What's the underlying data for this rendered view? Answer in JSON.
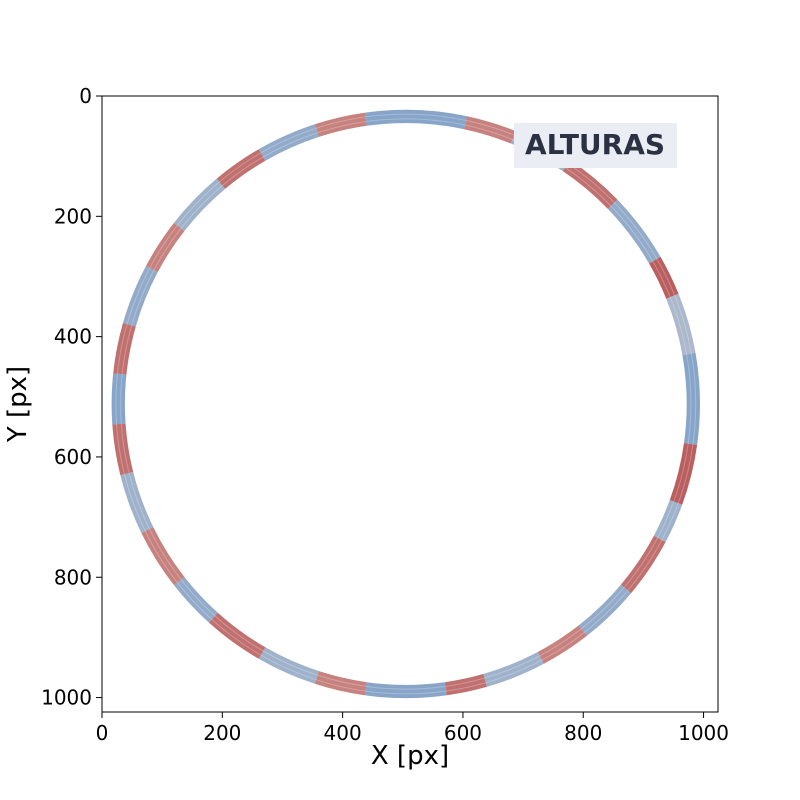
{
  "chart_data": {
    "type": "heatmap",
    "title": "",
    "xlabel": "X [px]",
    "ylabel": "Y [px]",
    "xlim": [
      0,
      1024
    ],
    "ylim": [
      1024,
      0
    ],
    "x_ticks": [
      0,
      200,
      400,
      600,
      800,
      1000
    ],
    "y_ticks": [
      0,
      200,
      400,
      600,
      800,
      1000
    ],
    "x_tick_labels": [
      "0",
      "200",
      "400",
      "600",
      "800",
      "1000"
    ],
    "y_tick_labels": [
      "0",
      "200",
      "400",
      "600",
      "800",
      "1000"
    ],
    "grid": false,
    "annotation": {
      "text": "ALTURAS",
      "position": "top-right",
      "text_color": "#2b3142",
      "background": "#eaeef4"
    },
    "ring": {
      "center": [
        505,
        512
      ],
      "radius": 478,
      "thickness": 22,
      "colormap": {
        "low": "#6f98c8",
        "mid": "#e8d8cf",
        "high": "#a62b2f"
      },
      "segments": [
        {
          "start_deg": -10,
          "end_deg": 8,
          "value": 0.1
        },
        {
          "start_deg": 8,
          "end_deg": 20,
          "value": 0.85
        },
        {
          "start_deg": 20,
          "end_deg": 28,
          "value": 0.2
        },
        {
          "start_deg": 28,
          "end_deg": 40,
          "value": 0.8
        },
        {
          "start_deg": 40,
          "end_deg": 52,
          "value": 0.15
        },
        {
          "start_deg": 52,
          "end_deg": 62,
          "value": 0.75
        },
        {
          "start_deg": 62,
          "end_deg": 74,
          "value": 0.2
        },
        {
          "start_deg": 74,
          "end_deg": 82,
          "value": 0.8
        },
        {
          "start_deg": 82,
          "end_deg": 98,
          "value": 0.1
        },
        {
          "start_deg": 98,
          "end_deg": 108,
          "value": 0.75
        },
        {
          "start_deg": 108,
          "end_deg": 120,
          "value": 0.2
        },
        {
          "start_deg": 120,
          "end_deg": 132,
          "value": 0.8
        },
        {
          "start_deg": 132,
          "end_deg": 142,
          "value": 0.15
        },
        {
          "start_deg": 142,
          "end_deg": 154,
          "value": 0.75
        },
        {
          "start_deg": 154,
          "end_deg": 166,
          "value": 0.2
        },
        {
          "start_deg": 166,
          "end_deg": 176,
          "value": 0.8
        },
        {
          "start_deg": 176,
          "end_deg": 186,
          "value": 0.1
        },
        {
          "start_deg": 186,
          "end_deg": 196,
          "value": 0.8
        },
        {
          "start_deg": 196,
          "end_deg": 208,
          "value": 0.15
        },
        {
          "start_deg": 208,
          "end_deg": 218,
          "value": 0.75
        },
        {
          "start_deg": 218,
          "end_deg": 230,
          "value": 0.2
        },
        {
          "start_deg": 230,
          "end_deg": 240,
          "value": 0.8
        },
        {
          "start_deg": 240,
          "end_deg": 252,
          "value": 0.15
        },
        {
          "start_deg": 252,
          "end_deg": 262,
          "value": 0.75
        },
        {
          "start_deg": 262,
          "end_deg": 282,
          "value": 0.1
        },
        {
          "start_deg": 282,
          "end_deg": 292,
          "value": 0.75
        },
        {
          "start_deg": 292,
          "end_deg": 304,
          "value": 0.2
        },
        {
          "start_deg": 304,
          "end_deg": 316,
          "value": 0.8
        },
        {
          "start_deg": 316,
          "end_deg": 330,
          "value": 0.15
        },
        {
          "start_deg": 330,
          "end_deg": 338,
          "value": 0.85
        },
        {
          "start_deg": 338,
          "end_deg": 350,
          "value": 0.25
        }
      ]
    }
  }
}
